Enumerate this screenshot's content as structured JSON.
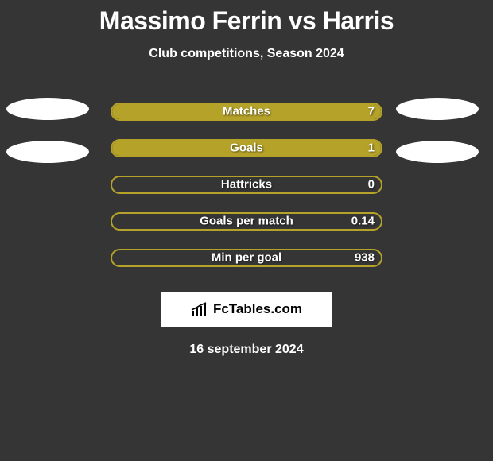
{
  "background_color": "#353535",
  "title": "Massimo Ferrin vs Harris",
  "subtitle": "Club competitions, Season 2024",
  "date_text": "16 september 2024",
  "brand": {
    "text": "FcTables.com"
  },
  "side_ellipse_color": "#ffffff",
  "bars": {
    "track_width": 342,
    "track_height": 23,
    "border_color": "#b5a229",
    "fill_color": "#b5a229",
    "label_color": "#ffffff"
  },
  "metrics": [
    {
      "label": "Matches",
      "left_value": null,
      "right_value": "7",
      "left_fill_pct": 0,
      "right_fill_pct": 100
    },
    {
      "label": "Goals",
      "left_value": null,
      "right_value": "1",
      "left_fill_pct": 0,
      "right_fill_pct": 100
    },
    {
      "label": "Hattricks",
      "left_value": null,
      "right_value": "0",
      "left_fill_pct": 0,
      "right_fill_pct": 0
    },
    {
      "label": "Goals per match",
      "left_value": null,
      "right_value": "0.14",
      "left_fill_pct": 0,
      "right_fill_pct": 0
    },
    {
      "label": "Min per goal",
      "left_value": null,
      "right_value": "938",
      "left_fill_pct": 0,
      "right_fill_pct": 0
    }
  ]
}
